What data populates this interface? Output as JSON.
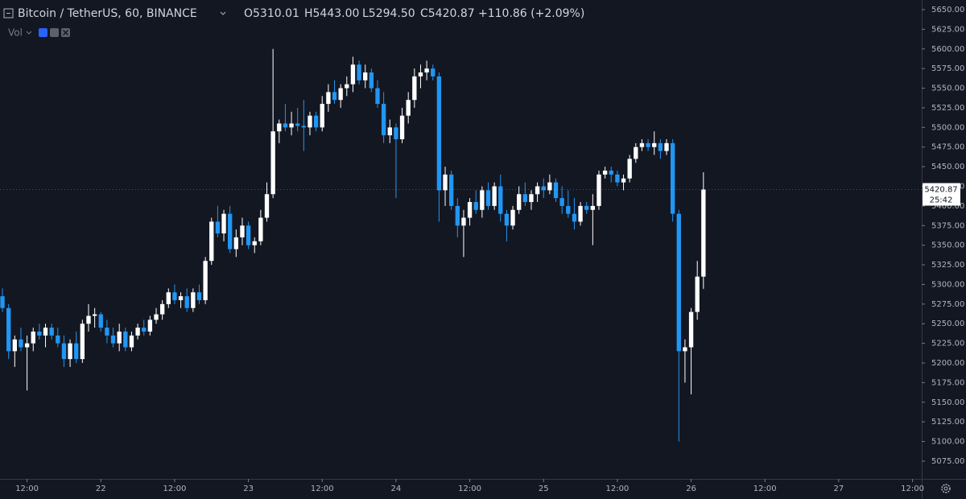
{
  "chart_data": {
    "type": "candlestick",
    "header": {
      "symbol": "Bitcoin / TetherUS, 60, BINANCE",
      "open": "O5310.01",
      "high": "H5443.00",
      "low": "L5294.50",
      "close": "C5420.87",
      "change": "+110.86 (+2.09%)",
      "volume_label": "Vol"
    },
    "open": [
      5285,
      5270,
      5215,
      5230,
      5220,
      5225,
      5240,
      5235,
      5245,
      5235,
      5225,
      5205,
      5225,
      5205,
      5250,
      5260,
      5262,
      5245,
      5235,
      5225,
      5240,
      5220,
      5235,
      5245,
      5240,
      5255,
      5262,
      5275,
      5290,
      5280,
      5285,
      5270,
      5290,
      5280,
      5330,
      5380,
      5365,
      5390,
      5345,
      5360,
      5375,
      5350,
      5355,
      5385,
      5415,
      5495,
      5505,
      5500,
      5505,
      5502,
      5500,
      5515,
      5500,
      5530,
      5545,
      5535,
      5550,
      5555,
      5580,
      5560,
      5570,
      5550,
      5530,
      5490,
      5500,
      5485,
      5515,
      5535,
      5565,
      5570,
      5575,
      5565,
      5420,
      5440,
      5400,
      5375,
      5385,
      5405,
      5395,
      5420,
      5400,
      5425,
      5390,
      5375,
      5395,
      5415,
      5405,
      5415,
      5425,
      5420,
      5430,
      5410,
      5400,
      5390,
      5380,
      5400,
      5395,
      5400,
      5440,
      5445,
      5440,
      5430,
      5435,
      5460,
      5475,
      5480,
      5475,
      5480,
      5470,
      5480,
      5390,
      5215,
      5220,
      5265,
      5310.01
    ],
    "high": [
      5295,
      5275,
      5235,
      5245,
      5235,
      5245,
      5250,
      5250,
      5250,
      5245,
      5235,
      5230,
      5240,
      5255,
      5275,
      5270,
      5265,
      5255,
      5245,
      5250,
      5245,
      5240,
      5250,
      5255,
      5260,
      5270,
      5280,
      5295,
      5300,
      5290,
      5295,
      5295,
      5300,
      5335,
      5385,
      5400,
      5395,
      5400,
      5370,
      5385,
      5380,
      5360,
      5395,
      5430,
      5600,
      5510,
      5530,
      5520,
      5525,
      5535,
      5520,
      5520,
      5540,
      5555,
      5560,
      5555,
      5565,
      5590,
      5585,
      5580,
      5575,
      5560,
      5545,
      5510,
      5505,
      5525,
      5545,
      5575,
      5580,
      5585,
      5580,
      5570,
      5450,
      5445,
      5410,
      5395,
      5410,
      5420,
      5425,
      5430,
      5430,
      5440,
      5395,
      5400,
      5425,
      5430,
      5420,
      5430,
      5435,
      5440,
      5435,
      5425,
      5420,
      5410,
      5405,
      5405,
      5415,
      5445,
      5450,
      5450,
      5445,
      5440,
      5465,
      5480,
      5485,
      5485,
      5495,
      5485,
      5485,
      5485,
      5395,
      5230,
      5270,
      5330,
      5443
    ],
    "low": [
      5265,
      5205,
      5195,
      5215,
      5165,
      5215,
      5230,
      5220,
      5230,
      5220,
      5195,
      5195,
      5200,
      5200,
      5240,
      5245,
      5240,
      5225,
      5220,
      5215,
      5215,
      5215,
      5230,
      5235,
      5235,
      5250,
      5255,
      5270,
      5275,
      5270,
      5265,
      5265,
      5275,
      5275,
      5325,
      5360,
      5355,
      5340,
      5335,
      5350,
      5345,
      5340,
      5350,
      5380,
      5410,
      5480,
      5495,
      5490,
      5495,
      5470,
      5490,
      5495,
      5495,
      5520,
      5530,
      5525,
      5540,
      5545,
      5555,
      5550,
      5545,
      5525,
      5480,
      5480,
      5410,
      5480,
      5505,
      5525,
      5550,
      5560,
      5560,
      5380,
      5400,
      5395,
      5360,
      5335,
      5375,
      5390,
      5385,
      5395,
      5395,
      5380,
      5355,
      5370,
      5390,
      5400,
      5395,
      5405,
      5410,
      5415,
      5405,
      5390,
      5385,
      5370,
      5375,
      5390,
      5350,
      5395,
      5435,
      5430,
      5425,
      5420,
      5430,
      5455,
      5470,
      5470,
      5465,
      5460,
      5465,
      5380,
      5100,
      5175,
      5160,
      5255,
      5294.5
    ],
    "close": [
      5270,
      5215,
      5230,
      5220,
      5225,
      5240,
      5235,
      5245,
      5235,
      5225,
      5205,
      5225,
      5205,
      5250,
      5260,
      5262,
      5245,
      5235,
      5225,
      5240,
      5220,
      5235,
      5245,
      5240,
      5255,
      5262,
      5275,
      5290,
      5280,
      5285,
      5270,
      5290,
      5280,
      5330,
      5380,
      5365,
      5390,
      5345,
      5360,
      5375,
      5350,
      5355,
      5385,
      5415,
      5495,
      5505,
      5500,
      5505,
      5502,
      5500,
      5515,
      5500,
      5530,
      5545,
      5535,
      5550,
      5555,
      5580,
      5560,
      5570,
      5550,
      5530,
      5490,
      5500,
      5485,
      5515,
      5535,
      5565,
      5570,
      5575,
      5565,
      5420,
      5440,
      5400,
      5375,
      5385,
      5405,
      5395,
      5420,
      5400,
      5425,
      5390,
      5375,
      5395,
      5415,
      5405,
      5415,
      5425,
      5420,
      5430,
      5410,
      5400,
      5390,
      5380,
      5400,
      5395,
      5400,
      5440,
      5445,
      5440,
      5430,
      5435,
      5460,
      5475,
      5480,
      5475,
      5480,
      5470,
      5480,
      5390,
      5215,
      5220,
      5265,
      5310,
      5420.87
    ],
    "up_color": "#ffffff",
    "down_color": "#2196f3",
    "grid": false,
    "last_price": 5420.87,
    "countdown": "25:42",
    "ylim": [
      5052.4,
      5662.3
    ],
    "yticks": [
      {
        "value": 5075,
        "label": "5075.00"
      },
      {
        "value": 5100,
        "label": "5100.00"
      },
      {
        "value": 5125,
        "label": "5125.00"
      },
      {
        "value": 5150,
        "label": "5150.00"
      },
      {
        "value": 5175,
        "label": "5175.00"
      },
      {
        "value": 5200,
        "label": "5200.00"
      },
      {
        "value": 5225,
        "label": "5225.00"
      },
      {
        "value": 5250,
        "label": "5250.00"
      },
      {
        "value": 5275,
        "label": "5275.00"
      },
      {
        "value": 5300,
        "label": "5300.00"
      },
      {
        "value": 5325,
        "label": "5325.00"
      },
      {
        "value": 5350,
        "label": "5350.00"
      },
      {
        "value": 5375,
        "label": "5375.00"
      },
      {
        "value": 5400,
        "label": "5400.00"
      },
      {
        "value": 5425,
        "label": "5425.00"
      },
      {
        "value": 5450,
        "label": "5450.00"
      },
      {
        "value": 5475,
        "label": "5475.00"
      },
      {
        "value": 5500,
        "label": "5500.00"
      },
      {
        "value": 5525,
        "label": "5525.00"
      },
      {
        "value": 5550,
        "label": "5550.00"
      },
      {
        "value": 5575,
        "label": "5575.00"
      },
      {
        "value": 5600,
        "label": "5600.00"
      },
      {
        "value": 5625,
        "label": "5625.00"
      },
      {
        "value": 5650,
        "label": "5650.00"
      }
    ],
    "xlim": [
      -0.4,
      149.5
    ],
    "xticks": [
      {
        "value": 4,
        "label": "12:00"
      },
      {
        "value": 16,
        "label": "22"
      },
      {
        "value": 28,
        "label": "12:00"
      },
      {
        "value": 40,
        "label": "23"
      },
      {
        "value": 52,
        "label": "12:00"
      },
      {
        "value": 64,
        "label": "24"
      },
      {
        "value": 76,
        "label": "12:00"
      },
      {
        "value": 88,
        "label": "25"
      },
      {
        "value": 100,
        "label": "12:00"
      },
      {
        "value": 112,
        "label": "26"
      },
      {
        "value": 124,
        "label": "12:00"
      },
      {
        "value": 136,
        "label": "27"
      },
      {
        "value": 148,
        "label": "12:00"
      }
    ]
  }
}
